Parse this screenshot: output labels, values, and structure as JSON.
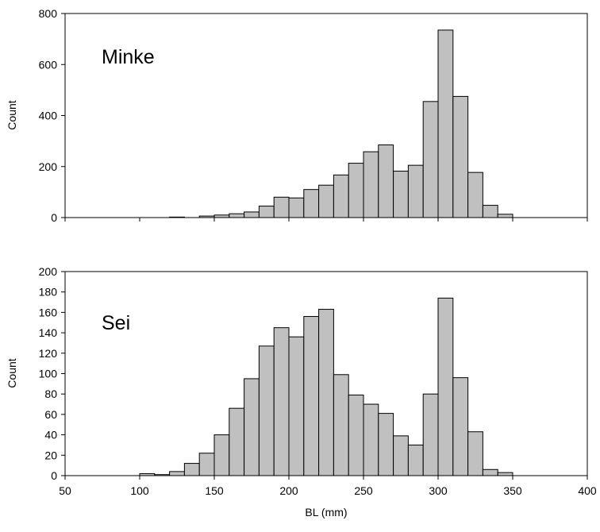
{
  "chart_data": [
    {
      "type": "bar",
      "title": "",
      "annotation": "Minke",
      "xlabel": "",
      "ylabel": "Count",
      "xlim": [
        50,
        400
      ],
      "ylim": [
        0,
        800
      ],
      "xticks": [
        50,
        100,
        150,
        200,
        250,
        300,
        350,
        400
      ],
      "yticks": [
        0,
        200,
        400,
        600,
        800
      ],
      "show_x_tick_labels": false,
      "bin_width": 10,
      "bar_color": "#c0c0c0",
      "grid": false,
      "bins": [
        50,
        60,
        70,
        80,
        90,
        100,
        110,
        120,
        130,
        140,
        150,
        160,
        170,
        180,
        190,
        200,
        210,
        220,
        230,
        240,
        250,
        260,
        270,
        280,
        290,
        300,
        310,
        320,
        330,
        340,
        350,
        360,
        370,
        380,
        390
      ],
      "values": [
        0,
        0,
        0,
        0,
        0,
        0,
        0,
        2,
        0,
        6,
        10,
        15,
        22,
        45,
        80,
        77,
        110,
        127,
        167,
        213,
        258,
        285,
        182,
        205,
        455,
        735,
        475,
        177,
        48,
        13,
        0,
        0,
        0,
        0,
        0
      ]
    },
    {
      "type": "bar",
      "title": "",
      "annotation": "Sei",
      "xlabel": "BL (mm)",
      "ylabel": "Count",
      "xlim": [
        50,
        400
      ],
      "ylim": [
        0,
        200
      ],
      "xticks": [
        50,
        100,
        150,
        200,
        250,
        300,
        350,
        400
      ],
      "yticks": [
        0,
        20,
        40,
        60,
        80,
        100,
        120,
        140,
        160,
        180,
        200
      ],
      "show_x_tick_labels": true,
      "bin_width": 10,
      "bar_color": "#c0c0c0",
      "grid": false,
      "bins": [
        50,
        60,
        70,
        80,
        90,
        100,
        110,
        120,
        130,
        140,
        150,
        160,
        170,
        180,
        190,
        200,
        210,
        220,
        230,
        240,
        250,
        260,
        270,
        280,
        290,
        300,
        310,
        320,
        330,
        340,
        350,
        360,
        370,
        380,
        390
      ],
      "values": [
        0,
        0,
        0,
        0,
        0,
        2,
        1,
        4,
        12,
        22,
        40,
        66,
        95,
        127,
        145,
        136,
        156,
        163,
        99,
        79,
        70,
        61,
        39,
        30,
        80,
        174,
        96,
        43,
        6,
        3,
        0,
        0,
        0,
        0,
        0
      ]
    }
  ]
}
